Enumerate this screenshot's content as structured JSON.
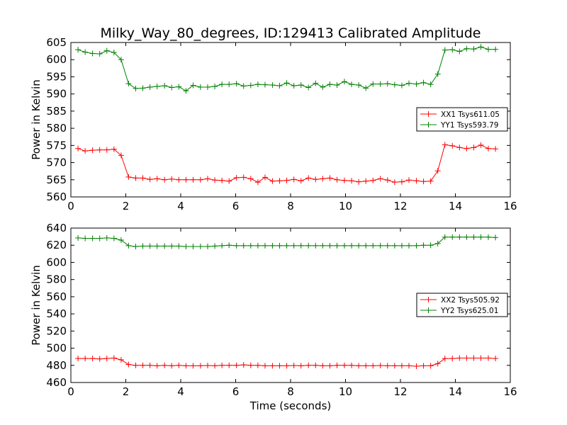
{
  "title": "Milky_Way_80_degrees, ID:129413 Calibrated Amplitude",
  "colors": {
    "xx": "#ff0000",
    "yy": "#008000"
  },
  "chart_data": [
    {
      "type": "line",
      "ylabel": "Power in Kelvin",
      "xlabel": "",
      "xlim": [
        0,
        16
      ],
      "ylim": [
        560,
        605
      ],
      "xticks": [
        0,
        2,
        4,
        6,
        8,
        10,
        12,
        14,
        16
      ],
      "yticks": [
        560,
        565,
        570,
        575,
        580,
        585,
        590,
        595,
        600,
        605
      ],
      "legend_position": "center-right",
      "x": [
        0.26,
        0.52,
        0.79,
        1.05,
        1.31,
        1.57,
        1.83,
        2.1,
        2.36,
        2.62,
        2.88,
        3.14,
        3.41,
        3.67,
        3.93,
        4.19,
        4.45,
        4.72,
        4.98,
        5.24,
        5.5,
        5.76,
        6.03,
        6.29,
        6.55,
        6.81,
        7.07,
        7.34,
        7.6,
        7.86,
        8.12,
        8.38,
        8.65,
        8.91,
        9.17,
        9.43,
        9.69,
        9.96,
        10.22,
        10.48,
        10.74,
        11.0,
        11.27,
        11.53,
        11.79,
        12.05,
        12.31,
        12.58,
        12.84,
        13.1,
        13.36,
        13.62,
        13.89,
        14.15,
        14.41,
        14.67,
        14.93,
        15.2,
        15.46
      ],
      "series": [
        {
          "name": "XX1 Tsys611.05",
          "color_key": "xx",
          "values": [
            574.1,
            573.4,
            573.6,
            573.7,
            573.7,
            573.9,
            572.1,
            565.8,
            565.5,
            565.5,
            565.1,
            565.3,
            565.0,
            565.2,
            565.0,
            565.0,
            565.0,
            565.0,
            565.3,
            564.9,
            564.8,
            564.6,
            565.6,
            565.7,
            565.3,
            564.3,
            565.7,
            564.6,
            564.7,
            564.8,
            565.1,
            564.7,
            565.5,
            565.1,
            565.3,
            565.5,
            565.0,
            564.8,
            564.7,
            564.4,
            564.6,
            564.8,
            565.3,
            564.9,
            564.3,
            564.4,
            564.9,
            564.7,
            564.5,
            564.6,
            567.6,
            575.2,
            574.9,
            574.4,
            574.1,
            574.4,
            575.1,
            574.1,
            574.0
          ]
        },
        {
          "name": "YY1 Tsys593.79",
          "color_key": "yy",
          "values": [
            602.9,
            602.2,
            601.8,
            601.7,
            602.6,
            602.1,
            600.0,
            593.0,
            591.6,
            591.7,
            592.0,
            592.2,
            592.4,
            591.9,
            592.1,
            590.9,
            592.5,
            592.0,
            592.0,
            592.2,
            592.8,
            592.8,
            593.0,
            592.3,
            592.5,
            592.8,
            592.7,
            592.6,
            592.4,
            593.2,
            592.4,
            592.6,
            591.9,
            593.1,
            592.0,
            592.8,
            592.6,
            593.6,
            592.8,
            592.6,
            591.7,
            592.9,
            592.9,
            593.0,
            592.7,
            592.5,
            593.1,
            592.9,
            593.3,
            592.8,
            595.8,
            602.8,
            602.9,
            602.4,
            603.2,
            603.1,
            603.7,
            603.0,
            603.0
          ]
        }
      ]
    },
    {
      "type": "line",
      "ylabel": "Power in Kelvin",
      "xlabel": "Time (seconds)",
      "xlim": [
        0,
        16
      ],
      "ylim": [
        460,
        640
      ],
      "xticks": [
        0,
        2,
        4,
        6,
        8,
        10,
        12,
        14,
        16
      ],
      "yticks": [
        460,
        480,
        500,
        520,
        540,
        560,
        580,
        600,
        620,
        640
      ],
      "legend_position": "center-right",
      "x": [
        0.26,
        0.52,
        0.79,
        1.05,
        1.31,
        1.57,
        1.83,
        2.1,
        2.36,
        2.62,
        2.88,
        3.14,
        3.41,
        3.67,
        3.93,
        4.19,
        4.45,
        4.72,
        4.98,
        5.24,
        5.5,
        5.76,
        6.03,
        6.29,
        6.55,
        6.81,
        7.07,
        7.34,
        7.6,
        7.86,
        8.12,
        8.38,
        8.65,
        8.91,
        9.17,
        9.43,
        9.69,
        9.96,
        10.22,
        10.48,
        10.74,
        11.0,
        11.27,
        11.53,
        11.79,
        12.05,
        12.31,
        12.58,
        12.84,
        13.1,
        13.36,
        13.62,
        13.89,
        14.15,
        14.41,
        14.67,
        14.93,
        15.2,
        15.46
      ],
      "series": [
        {
          "name": "XX2 Tsys505.92",
          "color_key": "xx",
          "values": [
            488.0,
            488.0,
            488.0,
            487.5,
            488.0,
            488.5,
            486.5,
            481.0,
            480.0,
            480.0,
            480.0,
            479.5,
            480.0,
            479.5,
            480.0,
            479.5,
            479.5,
            479.5,
            479.8,
            479.5,
            480.0,
            480.0,
            480.0,
            480.5,
            480.0,
            480.0,
            479.5,
            479.5,
            479.5,
            479.5,
            479.8,
            479.5,
            480.0,
            480.0,
            479.5,
            479.5,
            480.0,
            480.0,
            480.0,
            479.5,
            479.5,
            479.5,
            479.8,
            479.5,
            479.5,
            479.5,
            479.5,
            479.0,
            479.5,
            479.5,
            482.0,
            488.0,
            488.0,
            488.5,
            488.5,
            488.5,
            488.5,
            488.5,
            488.0
          ]
        },
        {
          "name": "YY2 Tsys625.01",
          "color_key": "yy",
          "values": [
            628.5,
            628.0,
            628.0,
            628.0,
            628.5,
            628.0,
            626.0,
            619.5,
            618.5,
            619.0,
            619.0,
            619.0,
            619.0,
            619.0,
            619.0,
            618.5,
            618.5,
            618.5,
            618.5,
            619.0,
            619.5,
            620.0,
            619.5,
            619.5,
            619.5,
            619.5,
            619.5,
            619.5,
            619.5,
            619.5,
            619.5,
            619.5,
            619.5,
            619.5,
            619.5,
            619.5,
            619.5,
            619.5,
            619.5,
            619.5,
            619.5,
            619.5,
            619.5,
            619.5,
            619.5,
            619.5,
            619.5,
            619.5,
            620.0,
            620.0,
            622.0,
            629.5,
            629.5,
            629.5,
            629.5,
            629.5,
            629.5,
            629.5,
            629.0
          ]
        }
      ]
    }
  ]
}
